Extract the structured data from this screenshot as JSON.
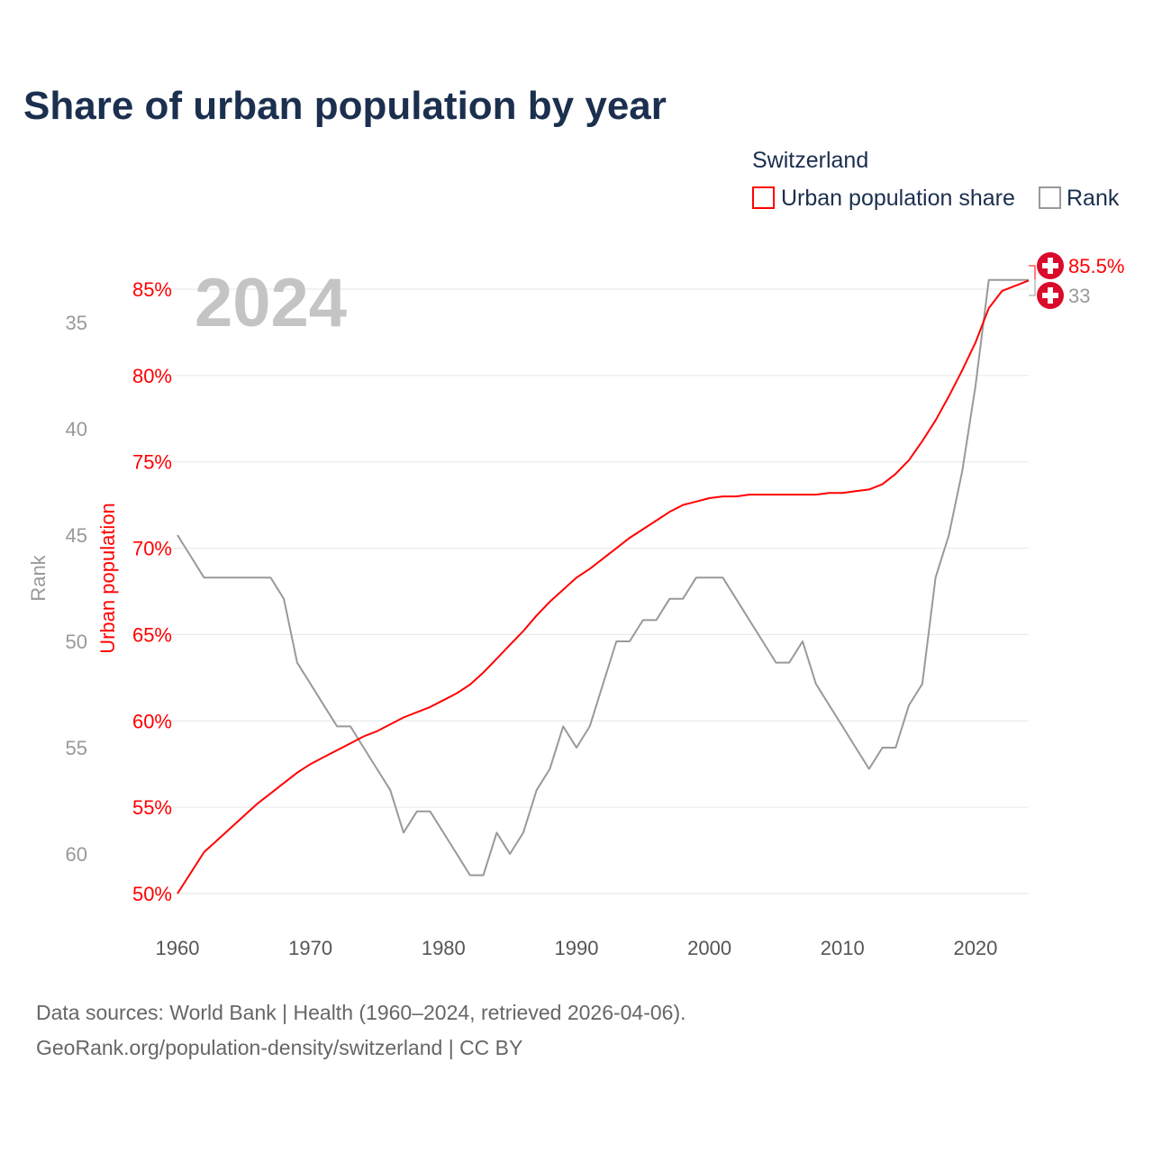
{
  "chart_data": {
    "type": "line",
    "title": "Share of urban population by year",
    "year_label": "2024",
    "legend": {
      "title": "Switzerland",
      "placement": "top-right",
      "entries": [
        "Urban population share",
        "Rank"
      ]
    },
    "colors": {
      "urban": "#ff0000",
      "rank": "#999999",
      "flag": "#da0a2b",
      "title": "#1b2f4e"
    },
    "xlabel": "",
    "ylabel_left": "Urban population",
    "ylabel_rank": "Rank",
    "xlim": [
      1960,
      2024
    ],
    "ylim_urban": [
      50,
      85
    ],
    "ylim_rank": [
      35,
      60
    ],
    "x_ticks": [
      "1960",
      "1970",
      "1980",
      "1990",
      "2000",
      "2010",
      "2020"
    ],
    "y_ticks_urban": [
      "50%",
      "55%",
      "60%",
      "65%",
      "70%",
      "75%",
      "80%",
      "85%"
    ],
    "y_ticks_rank": [
      "35",
      "40",
      "45",
      "50",
      "55",
      "60"
    ],
    "grid": true,
    "x": [
      1960,
      1961,
      1962,
      1963,
      1964,
      1965,
      1966,
      1967,
      1968,
      1969,
      1970,
      1971,
      1972,
      1973,
      1974,
      1975,
      1976,
      1977,
      1978,
      1979,
      1980,
      1981,
      1982,
      1983,
      1984,
      1985,
      1986,
      1987,
      1988,
      1989,
      1990,
      1991,
      1992,
      1993,
      1994,
      1995,
      1996,
      1997,
      1998,
      1999,
      2000,
      2001,
      2002,
      2003,
      2004,
      2005,
      2006,
      2007,
      2008,
      2009,
      2010,
      2011,
      2012,
      2013,
      2014,
      2015,
      2016,
      2017,
      2018,
      2019,
      2020,
      2021,
      2022,
      2023,
      2024
    ],
    "series": [
      {
        "name": "Urban population share",
        "unit": "%",
        "values": [
          50.0,
          51.2,
          52.4,
          53.1,
          53.8,
          54.5,
          55.2,
          55.8,
          56.4,
          57.0,
          57.5,
          57.9,
          58.3,
          58.7,
          59.1,
          59.4,
          59.8,
          60.2,
          60.5,
          60.8,
          61.2,
          61.6,
          62.1,
          62.8,
          63.6,
          64.4,
          65.2,
          66.1,
          66.9,
          67.6,
          68.3,
          68.8,
          69.4,
          70.0,
          70.6,
          71.1,
          71.6,
          72.1,
          72.5,
          72.7,
          72.9,
          73.0,
          73.0,
          73.1,
          73.1,
          73.1,
          73.1,
          73.1,
          73.1,
          73.2,
          73.2,
          73.3,
          73.4,
          73.7,
          74.3,
          75.1,
          76.2,
          77.4,
          78.8,
          80.3,
          81.9,
          83.9,
          84.9,
          85.2,
          85.5
        ]
      },
      {
        "name": "Rank",
        "values": [
          45,
          46,
          47,
          47,
          47,
          47,
          47,
          47,
          48,
          51,
          52,
          53,
          54,
          54,
          55,
          56,
          57,
          59,
          58,
          58,
          59,
          60,
          61,
          61,
          59,
          60,
          59,
          57,
          56,
          54,
          55,
          54,
          52,
          50,
          50,
          49,
          49,
          48,
          48,
          47,
          47,
          47,
          48,
          49,
          50,
          51,
          51,
          50,
          52,
          53,
          54,
          55,
          56,
          55,
          55,
          53,
          52,
          47,
          45,
          42,
          38,
          33,
          33,
          33,
          33
        ]
      }
    ],
    "end_labels": {
      "urban": "85.5%",
      "rank": "33"
    }
  },
  "source": {
    "line1": "Data sources: World Bank | Health (1960–2024, retrieved 2026-04-06).",
    "line2": "GeoRank.org/population-density/switzerland | CC BY"
  }
}
